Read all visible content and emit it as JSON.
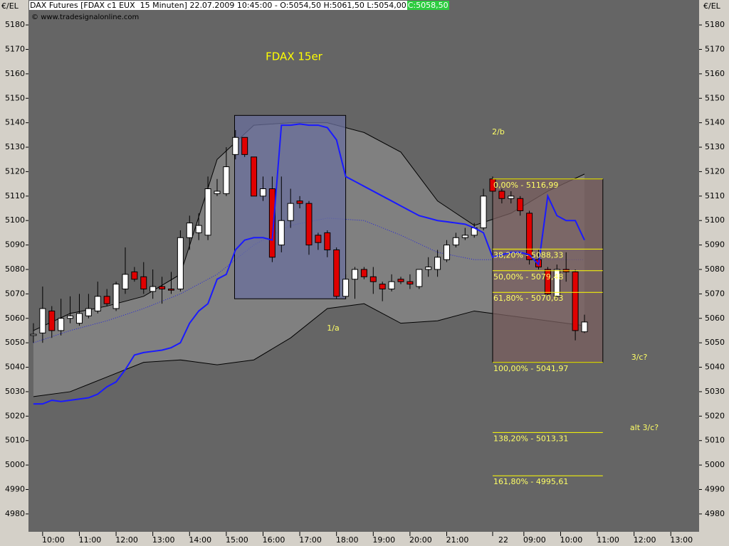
{
  "chart_data": {
    "type": "candlestick",
    "title": "DAX Futures [FDAX c1 EUX  15 Minuten] 22.07.2009 10:45:00 - O:5054,50 H:5061,50 L:5054,00",
    "last_close": "C:5058,50",
    "source": "www.tradesignalonline.com",
    "unit": "€/EL",
    "chart_label": "FDAX 15er",
    "annotations": [
      "1/a",
      "2/b",
      "3/c?",
      "alt 3/c?"
    ],
    "xlim": [
      -0.54,
      72.48
    ],
    "xticks": [
      {
        "value": 1,
        "label": "10:00"
      },
      {
        "value": 5,
        "label": "11:00"
      },
      {
        "value": 9,
        "label": "12:00"
      },
      {
        "value": 13,
        "label": "13:00"
      },
      {
        "value": 17,
        "label": "14:00"
      },
      {
        "value": 21,
        "label": "15:00"
      },
      {
        "value": 25,
        "label": "16:00"
      },
      {
        "value": 29,
        "label": "17:00"
      },
      {
        "value": 33,
        "label": "18:00"
      },
      {
        "value": 37,
        "label": "19:00"
      },
      {
        "value": 41,
        "label": "20:00"
      },
      {
        "value": 45,
        "label": "21:00"
      },
      {
        "value": 50,
        "label": "22"
      },
      {
        "value": 53.4,
        "label": "09:00"
      },
      {
        "value": 57.4,
        "label": "10:00"
      },
      {
        "value": 61.4,
        "label": "11:00"
      },
      {
        "value": 65.4,
        "label": "12:00"
      },
      {
        "value": 69.4,
        "label": "13:00"
      }
    ],
    "ylim": [
      4972.7,
      5190.2
    ],
    "yticks": [
      4980,
      4990,
      5000,
      5010,
      5020,
      5030,
      5040,
      5050,
      5060,
      5070,
      5080,
      5090,
      5100,
      5110,
      5120,
      5130,
      5140,
      5150,
      5160,
      5170,
      5180
    ],
    "up_color": "#ffffff",
    "down_color": "#e00000",
    "x": [
      0,
      1,
      2,
      3,
      4,
      5,
      6,
      7,
      8,
      9,
      10,
      11,
      12,
      13,
      14,
      15,
      16,
      17,
      18,
      19,
      20,
      21,
      22,
      23,
      24,
      25,
      26,
      27,
      28,
      29,
      30,
      31,
      32,
      33,
      34,
      35,
      36,
      37,
      38,
      39,
      40,
      41,
      42,
      43,
      44,
      45,
      46,
      47,
      48,
      49,
      50,
      51,
      52,
      53,
      54,
      55,
      56,
      57,
      58,
      59,
      60
    ],
    "open": [
      5053,
      5054,
      5063,
      5055,
      5060,
      5058,
      5061,
      5063,
      5069,
      5064,
      5072,
      5079,
      5077,
      5071,
      5073,
      5072,
      5072,
      5093,
      5095,
      5094,
      5111,
      5111,
      5127,
      5134,
      5126,
      5110,
      5113,
      5090,
      5100,
      5108,
      5107,
      5094,
      5095,
      5088,
      5069,
      5076,
      5080,
      5077,
      5074,
      5072,
      5076,
      5075,
      5073,
      5080,
      5080,
      5084,
      5090,
      5093,
      5094,
      5097,
      5117,
      5112,
      5109,
      5109,
      5103,
      5084,
      5080,
      5069,
      5080,
      5079,
      5054.5
    ],
    "high": [
      5058,
      5073,
      5065,
      5068,
      5069,
      5070,
      5070,
      5075,
      5072,
      5075,
      5089,
      5081,
      5083,
      5080,
      5077,
      5079,
      5096,
      5102,
      5103,
      5118,
      5117,
      5130,
      5137,
      5134,
      5126,
      5118,
      5118,
      5118,
      5113,
      5110,
      5108,
      5095,
      5096,
      5089,
      5078,
      5081,
      5081,
      5081,
      5075,
      5078,
      5077,
      5078,
      5080,
      5085,
      5088,
      5092,
      5095,
      5097,
      5099,
      5113,
      5118,
      5113,
      5112,
      5110,
      5104,
      5088,
      5081,
      5082,
      5087,
      5080,
      5061.5
    ],
    "low": [
      5050,
      5050,
      5052,
      5053,
      5058,
      5057,
      5060,
      5062,
      5065,
      5063,
      5070,
      5075,
      5070,
      5068,
      5066,
      5070,
      5071,
      5088,
      5092,
      5092,
      5110,
      5110,
      5125,
      5126,
      5110,
      5108,
      5083,
      5087,
      5097,
      5105,
      5086,
      5088,
      5085,
      5068,
      5068,
      5068,
      5076,
      5070,
      5067,
      5071,
      5074,
      5072,
      5072,
      5077,
      5077,
      5083,
      5089,
      5092,
      5093,
      5096,
      5110,
      5107,
      5107,
      5102,
      5082,
      5080,
      5069,
      5068,
      5075,
      5051,
      5054
    ],
    "close": [
      5053.5,
      5064,
      5055,
      5060,
      5061,
      5062,
      5064,
      5069,
      5066,
      5074,
      5078,
      5076,
      5072,
      5073,
      5072,
      5071.5,
      5093,
      5099,
      5098,
      5113,
      5112,
      5122,
      5134,
      5127,
      5110,
      5113,
      5085,
      5100,
      5107,
      5107,
      5090,
      5091,
      5088,
      5069,
      5076,
      5080,
      5077,
      5075,
      5072,
      5075,
      5075,
      5074,
      5080,
      5081,
      5085,
      5090,
      5093,
      5094,
      5097,
      5110,
      5112,
      5109,
      5110,
      5104,
      5084,
      5081,
      5070,
      5080,
      5079,
      5055,
      5058.5
    ],
    "ma": {
      "color": "#1a1aff",
      "values": [
        5025,
        5025,
        5026.5,
        5026,
        5026.5,
        5027,
        5027.5,
        5029,
        5032,
        5034,
        5039,
        5045,
        5046,
        5046.5,
        5047,
        5048,
        5050,
        5058,
        5063,
        5066,
        5076,
        5078,
        5088,
        5092,
        5093,
        5093,
        5092,
        5139,
        5139,
        5139.5,
        5139,
        5139,
        5138,
        5133,
        5118,
        5116,
        5114,
        5112,
        5110,
        5108,
        5106,
        5104,
        5102,
        5101,
        5100,
        5099.5,
        5099,
        5098.5,
        5097,
        5095,
        5085,
        5086,
        5087,
        5087,
        5086,
        5082,
        5110,
        5102,
        5100,
        5100,
        5092
      ]
    },
    "bands": {
      "fill": "#808080",
      "line_color": "#000000",
      "middle_color": "#2222dd",
      "x": [
        0,
        4,
        8,
        12,
        16,
        20,
        24,
        28,
        32,
        36,
        40,
        44,
        48,
        52,
        56,
        60
      ],
      "upper": [
        5055,
        5062,
        5065,
        5069,
        5078,
        5125,
        5139,
        5140,
        5140,
        5136,
        5128,
        5108,
        5098,
        5103,
        5112,
        5119
      ],
      "middle": [
        5050,
        5055,
        5059,
        5064,
        5070,
        5078,
        5090,
        5098,
        5101,
        5100,
        5094,
        5087,
        5084,
        5084,
        5084,
        5084
      ],
      "lower": [
        5028,
        5030,
        5036,
        5042,
        5043,
        5041,
        5043,
        5052,
        5064,
        5066,
        5058,
        5059,
        5063,
        5061,
        5059,
        5057
      ]
    },
    "zone": {
      "x": [
        21.9,
        34.0
      ],
      "y": [
        5068,
        5143
      ],
      "color": "#6a6f9c"
    },
    "fib": {
      "x": [
        50,
        62
      ],
      "color": "#ffff00",
      "box_color": "#7a5f5f",
      "levels": [
        {
          "value": 5116.99,
          "label": "0,00% - 5116,99"
        },
        {
          "value": 5088.33,
          "label": "38,20% - 5088,33"
        },
        {
          "value": 5079.48,
          "label": "50,00% - 5079,48"
        },
        {
          "value": 5070.63,
          "label": "61,80% - 5070,63"
        },
        {
          "value": 5041.97,
          "label": "100,00% - 5041,97"
        },
        {
          "value": 5013.31,
          "label": "138,20% - 5013,31"
        },
        {
          "value": 4995.61,
          "label": "161,80% - 4995,61"
        }
      ]
    }
  }
}
